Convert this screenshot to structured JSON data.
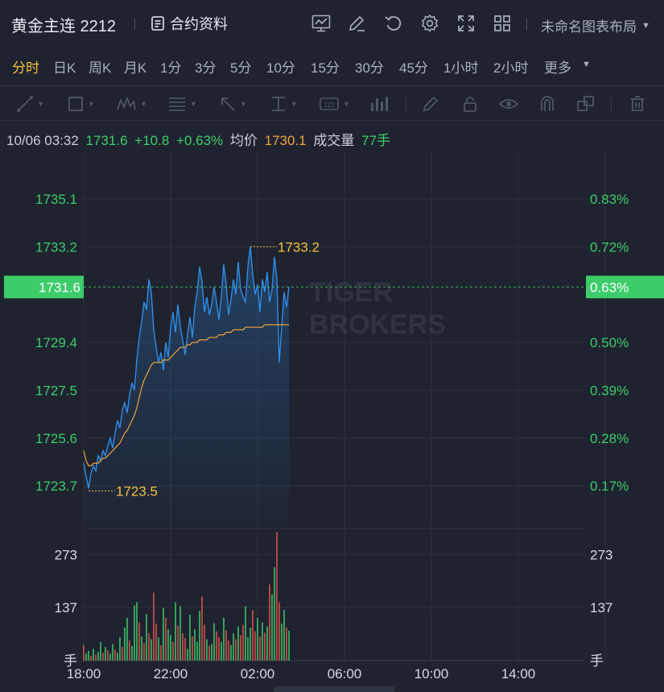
{
  "header": {
    "title": "黄金主连 2212",
    "contract_info_label": "合约资料",
    "layout_label": "未命名图表布局",
    "icons": [
      "chart-icon",
      "draw-icon",
      "refresh-icon",
      "settings-icon",
      "fullscreen-icon",
      "grid-icon"
    ]
  },
  "periods": [
    {
      "label": "分时",
      "active": true
    },
    {
      "label": "日K"
    },
    {
      "label": "周K"
    },
    {
      "label": "月K"
    },
    {
      "label": "1分"
    },
    {
      "label": "3分"
    },
    {
      "label": "5分"
    },
    {
      "label": "10分"
    },
    {
      "label": "15分"
    },
    {
      "label": "30分"
    },
    {
      "label": "45分"
    },
    {
      "label": "1小时"
    },
    {
      "label": "2小时"
    },
    {
      "label": "更多"
    }
  ],
  "toolbar": {
    "tools": [
      "line-tool-icon",
      "rect-tool-icon",
      "pattern-tool-icon",
      "fib-tool-icon",
      "arrow-tool-icon",
      "measure-tool-icon",
      "number-tool-icon",
      "bar-tool-icon",
      "pen-icon",
      "lock-icon",
      "eye-icon",
      "magnet-icon",
      "copy-icon",
      "trash-icon"
    ]
  },
  "info": {
    "datetime": "10/06 03:32",
    "price": "1731.6",
    "change": "+10.8",
    "change_pct": "+0.63%",
    "avg_label": "均价",
    "avg_value": "1730.1",
    "volume_label": "成交量",
    "volume_value": "77手"
  },
  "colors": {
    "price_line": "#2e8ee8",
    "avg_line": "#f0a33a",
    "up": "#3dcc6a",
    "down": "#e0554c",
    "accent": "#f6c23e",
    "current_badge": "#3dcc6a"
  },
  "watermark": [
    "TIGER",
    "BROKERS"
  ],
  "chart_data": {
    "type": "line",
    "x_tick_labels": [
      "18:00",
      "22:00",
      "02:00",
      "06:00",
      "10:00",
      "14:00"
    ],
    "y_left_labels": [
      "1735.1",
      "1733.2",
      "1729.4",
      "1727.5",
      "1725.6",
      "1723.7"
    ],
    "y_right_labels": [
      "0.83%",
      "0.72%",
      "0.50%",
      "0.39%",
      "0.28%",
      "0.17%"
    ],
    "current_price": "1731.6",
    "current_pct": "0.63%",
    "ylim": [
      1722.2,
      1736.6
    ],
    "high_label": "1733.2",
    "low_label": "1723.5",
    "price": [
      1724.6,
      1724.1,
      1723.6,
      1724.2,
      1724.5,
      1724.3,
      1724.9,
      1724.7,
      1725.1,
      1724.9,
      1725.3,
      1725.6,
      1725.2,
      1725.8,
      1726.3,
      1726.0,
      1726.7,
      1727.0,
      1726.6,
      1727.3,
      1727.8,
      1727.5,
      1728.7,
      1729.6,
      1730.2,
      1731.0,
      1730.7,
      1731.9,
      1731.4,
      1729.9,
      1729.2,
      1728.6,
      1729.0,
      1728.3,
      1729.4,
      1728.8,
      1730.0,
      1730.6,
      1729.8,
      1730.9,
      1730.0,
      1729.5,
      1728.9,
      1729.7,
      1730.4,
      1729.6,
      1730.8,
      1731.4,
      1732.4,
      1731.8,
      1730.6,
      1731.2,
      1730.5,
      1730.9,
      1731.6,
      1731.0,
      1730.3,
      1731.2,
      1732.5,
      1731.7,
      1730.5,
      1731.1,
      1731.9,
      1731.3,
      1732.6,
      1731.5,
      1731.2,
      1731.0,
      1732.4,
      1733.2,
      1732.1,
      1731.3,
      1731.7,
      1730.6,
      1731.9,
      1731.4,
      1732.2,
      1731.0,
      1731.5,
      1732.8,
      1731.9,
      1728.6,
      1730.0,
      1731.4,
      1730.8,
      1731.6
    ],
    "avg": [
      1725.1,
      1724.7,
      1724.5,
      1724.5,
      1724.6,
      1724.6,
      1724.6,
      1724.7,
      1724.8,
      1724.8,
      1724.9,
      1725.0,
      1725.1,
      1725.2,
      1725.3,
      1725.4,
      1725.6,
      1725.8,
      1725.9,
      1726.1,
      1726.3,
      1726.5,
      1726.8,
      1727.2,
      1727.6,
      1727.9,
      1728.1,
      1728.3,
      1728.5,
      1728.6,
      1728.6,
      1728.6,
      1728.6,
      1728.7,
      1728.7,
      1728.7,
      1728.8,
      1728.9,
      1729.0,
      1729.1,
      1729.2,
      1729.2,
      1729.2,
      1729.3,
      1729.3,
      1729.4,
      1729.4,
      1729.4,
      1729.5,
      1729.5,
      1729.5,
      1729.5,
      1729.6,
      1729.6,
      1729.6,
      1729.6,
      1729.7,
      1729.7,
      1729.7,
      1729.8,
      1729.8,
      1729.8,
      1729.9,
      1729.9,
      1729.9,
      1729.9,
      1729.9,
      1730.0,
      1730.0,
      1730.0,
      1730.0,
      1730.0,
      1730.0,
      1730.0,
      1730.0,
      1730.1,
      1730.1,
      1730.1,
      1730.1,
      1730.1,
      1730.1,
      1730.1,
      1730.1,
      1730.1,
      1730.1,
      1730.1
    ],
    "volume_ylim": [
      0,
      340
    ],
    "volume_tick_labels": [
      "273",
      "137"
    ],
    "volume_unit": "手",
    "volume": [
      40,
      18,
      25,
      12,
      30,
      15,
      22,
      48,
      20,
      35,
      26,
      18,
      42,
      28,
      20,
      60,
      35,
      85,
      110,
      52,
      38,
      142,
      150,
      98,
      62,
      45,
      120,
      70,
      55,
      175,
      95,
      60,
      40,
      135,
      110,
      80,
      65,
      48,
      150,
      90,
      140,
      70,
      58,
      30,
      118,
      62,
      80,
      48,
      128,
      165,
      92,
      55,
      38,
      42,
      96,
      75,
      60,
      48,
      110,
      78,
      52,
      40,
      70,
      55,
      88,
      65,
      92,
      140,
      60,
      85,
      130,
      75,
      110,
      62,
      98,
      72,
      88,
      196,
      170,
      240,
      330,
      150,
      95,
      130,
      85,
      77
    ],
    "volume_dir": [
      "d",
      "u",
      "u",
      "d",
      "u",
      "d",
      "u",
      "u",
      "d",
      "u",
      "d",
      "u",
      "u",
      "d",
      "u",
      "u",
      "d",
      "u",
      "u",
      "d",
      "u",
      "u",
      "u",
      "d",
      "u",
      "d",
      "u",
      "d",
      "u",
      "d",
      "d",
      "u",
      "d",
      "u",
      "d",
      "u",
      "u",
      "d",
      "u",
      "d",
      "u",
      "d",
      "d",
      "u",
      "u",
      "d",
      "u",
      "u",
      "u",
      "d",
      "d",
      "u",
      "d",
      "u",
      "u",
      "d",
      "d",
      "u",
      "u",
      "d",
      "d",
      "u",
      "u",
      "d",
      "u",
      "d",
      "d",
      "u",
      "u",
      "u",
      "d",
      "d",
      "u",
      "d",
      "u",
      "d",
      "u",
      "d",
      "u",
      "u",
      "d",
      "d",
      "u",
      "u",
      "d",
      "u"
    ]
  }
}
